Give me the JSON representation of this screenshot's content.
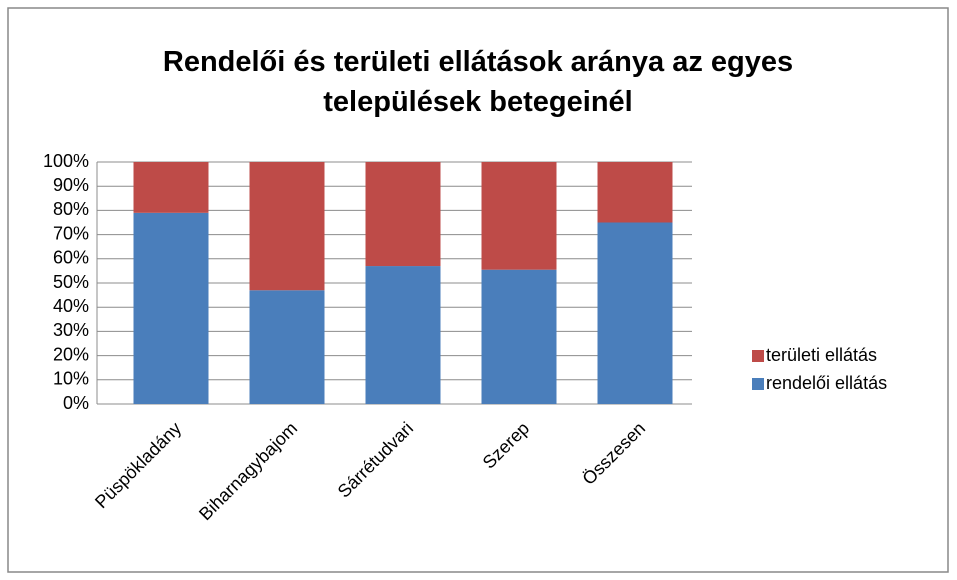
{
  "chart_data": {
    "type": "stacked_bar",
    "title": "Rendelői és területi ellátások aránya az egyes települések betegeinél",
    "categories": [
      "Püspökladány",
      "Biharnagybajom",
      "Sárrétudvari",
      "Szerep",
      "Összesen"
    ],
    "series": [
      {
        "name": "rendelői ellátás",
        "color": "#4a7ebb",
        "values": [
          79,
          47,
          57,
          55.5,
          75
        ]
      },
      {
        "name": "területi ellátás",
        "color": "#be4b48",
        "values": [
          21,
          53,
          43,
          44.5,
          25
        ]
      }
    ],
    "ylim": [
      0,
      100
    ],
    "yticks": [
      {
        "value": 0,
        "label": "0%"
      },
      {
        "value": 10,
        "label": "10%"
      },
      {
        "value": 20,
        "label": "20%"
      },
      {
        "value": 30,
        "label": "30%"
      },
      {
        "value": 40,
        "label": "40%"
      },
      {
        "value": 50,
        "label": "50%"
      },
      {
        "value": 60,
        "label": "60%"
      },
      {
        "value": 70,
        "label": "70%"
      },
      {
        "value": 80,
        "label": "80%"
      },
      {
        "value": 90,
        "label": "90%"
      },
      {
        "value": 100,
        "label": "100%"
      }
    ],
    "grid": true,
    "legend": "right"
  }
}
